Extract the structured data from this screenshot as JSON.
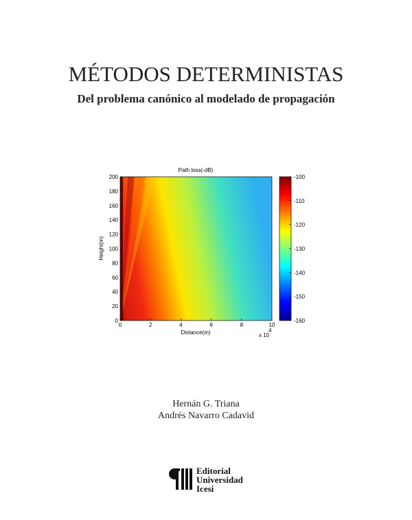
{
  "header": {
    "title": "MÉTODOS DETERMINISTAS",
    "subtitle": "Del problema canónico al modelado de propagación"
  },
  "chart_data": {
    "type": "heatmap",
    "title": "Path loss(-dB)",
    "xlabel": "Distance(m)",
    "ylabel": "Height(m)",
    "xlim": [
      0,
      10
    ],
    "xticks": [
      0,
      2,
      4,
      6,
      8,
      10
    ],
    "x_multiplier": "x 10",
    "x_multiplier_exponent": "4",
    "ylim": [
      0,
      200
    ],
    "yticks": [
      0,
      20,
      40,
      60,
      80,
      100,
      120,
      140,
      160,
      180,
      200
    ],
    "colormap": "jet",
    "clim": [
      -160,
      -100
    ],
    "cticks": [
      -160,
      -150,
      -140,
      -130,
      -120,
      -110,
      -100
    ]
  },
  "authors": [
    "Hernán G. Triana",
    "Andrés Navarro Cadavid"
  ],
  "publisher": [
    "Editorial",
    "Universidad",
    "Icesi"
  ]
}
